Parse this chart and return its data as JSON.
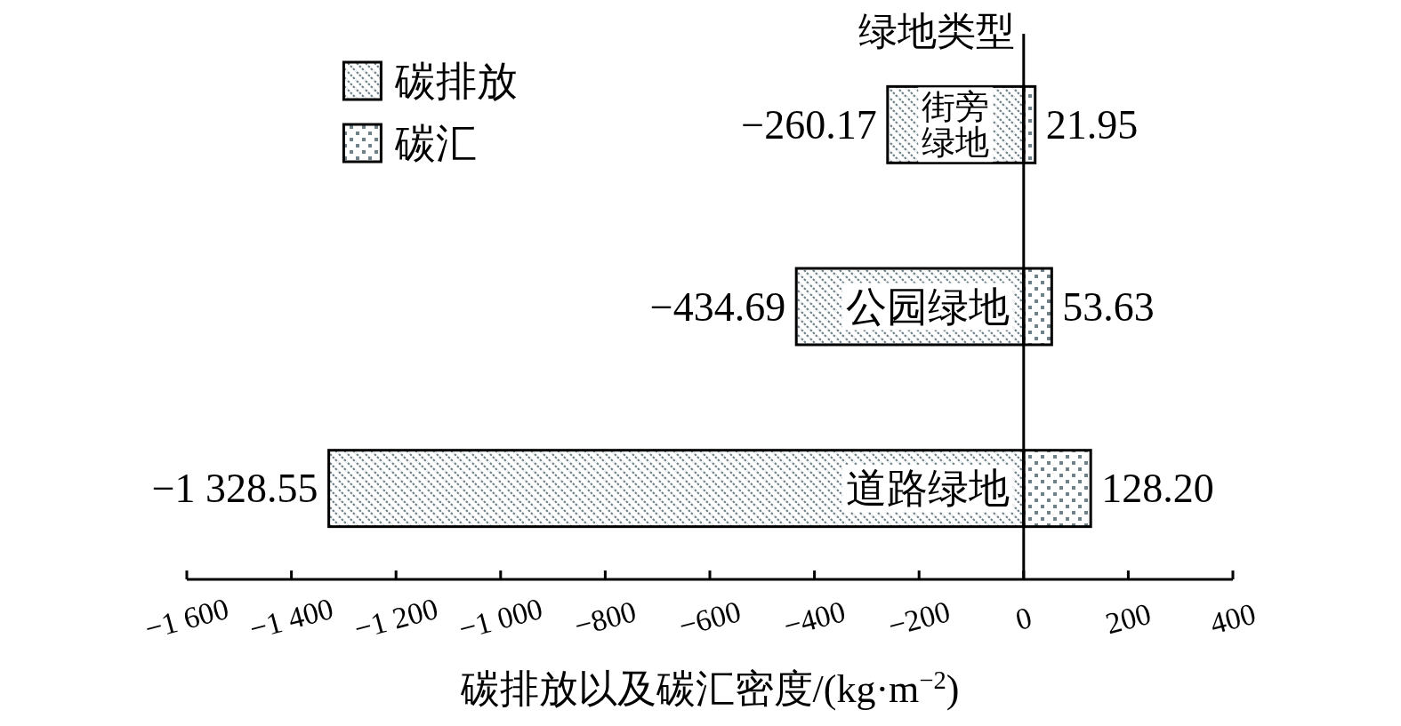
{
  "chart_data": {
    "type": "bar",
    "orientation": "horizontal",
    "stacked": true,
    "ylabel": "绿地类型",
    "xlabel": "碳排放以及碳汇密度/(kg·m$^{−2}$)",
    "categories": [
      "街旁绿地",
      "公园绿地",
      "道路绿地"
    ],
    "series": [
      {
        "name": "碳排放",
        "color": "#6f8189",
        "values": [
          -260.17,
          -434.69,
          -1328.55
        ],
        "value_labels": [
          "−260.17",
          "−434.69",
          "−1 328.55"
        ]
      },
      {
        "name": "碳汇",
        "color": "#6f8189",
        "values": [
          21.95,
          53.63,
          128.2
        ],
        "value_labels": [
          "21.95",
          "53.63",
          "128.20"
        ]
      }
    ],
    "xlim": [
      -1600,
      400
    ],
    "xticks": [
      {
        "value": -1600,
        "label": "−1 600"
      },
      {
        "value": -1400,
        "label": "−1 400"
      },
      {
        "value": -1200,
        "label": "−1 200"
      },
      {
        "value": -1000,
        "label": "−1 000"
      },
      {
        "value": -800,
        "label": "−800"
      },
      {
        "value": -600,
        "label": "−600"
      },
      {
        "value": -400,
        "label": "−400"
      },
      {
        "value": -200,
        "label": "−200"
      },
      0,
      200,
      400
    ],
    "legend": "top left"
  }
}
